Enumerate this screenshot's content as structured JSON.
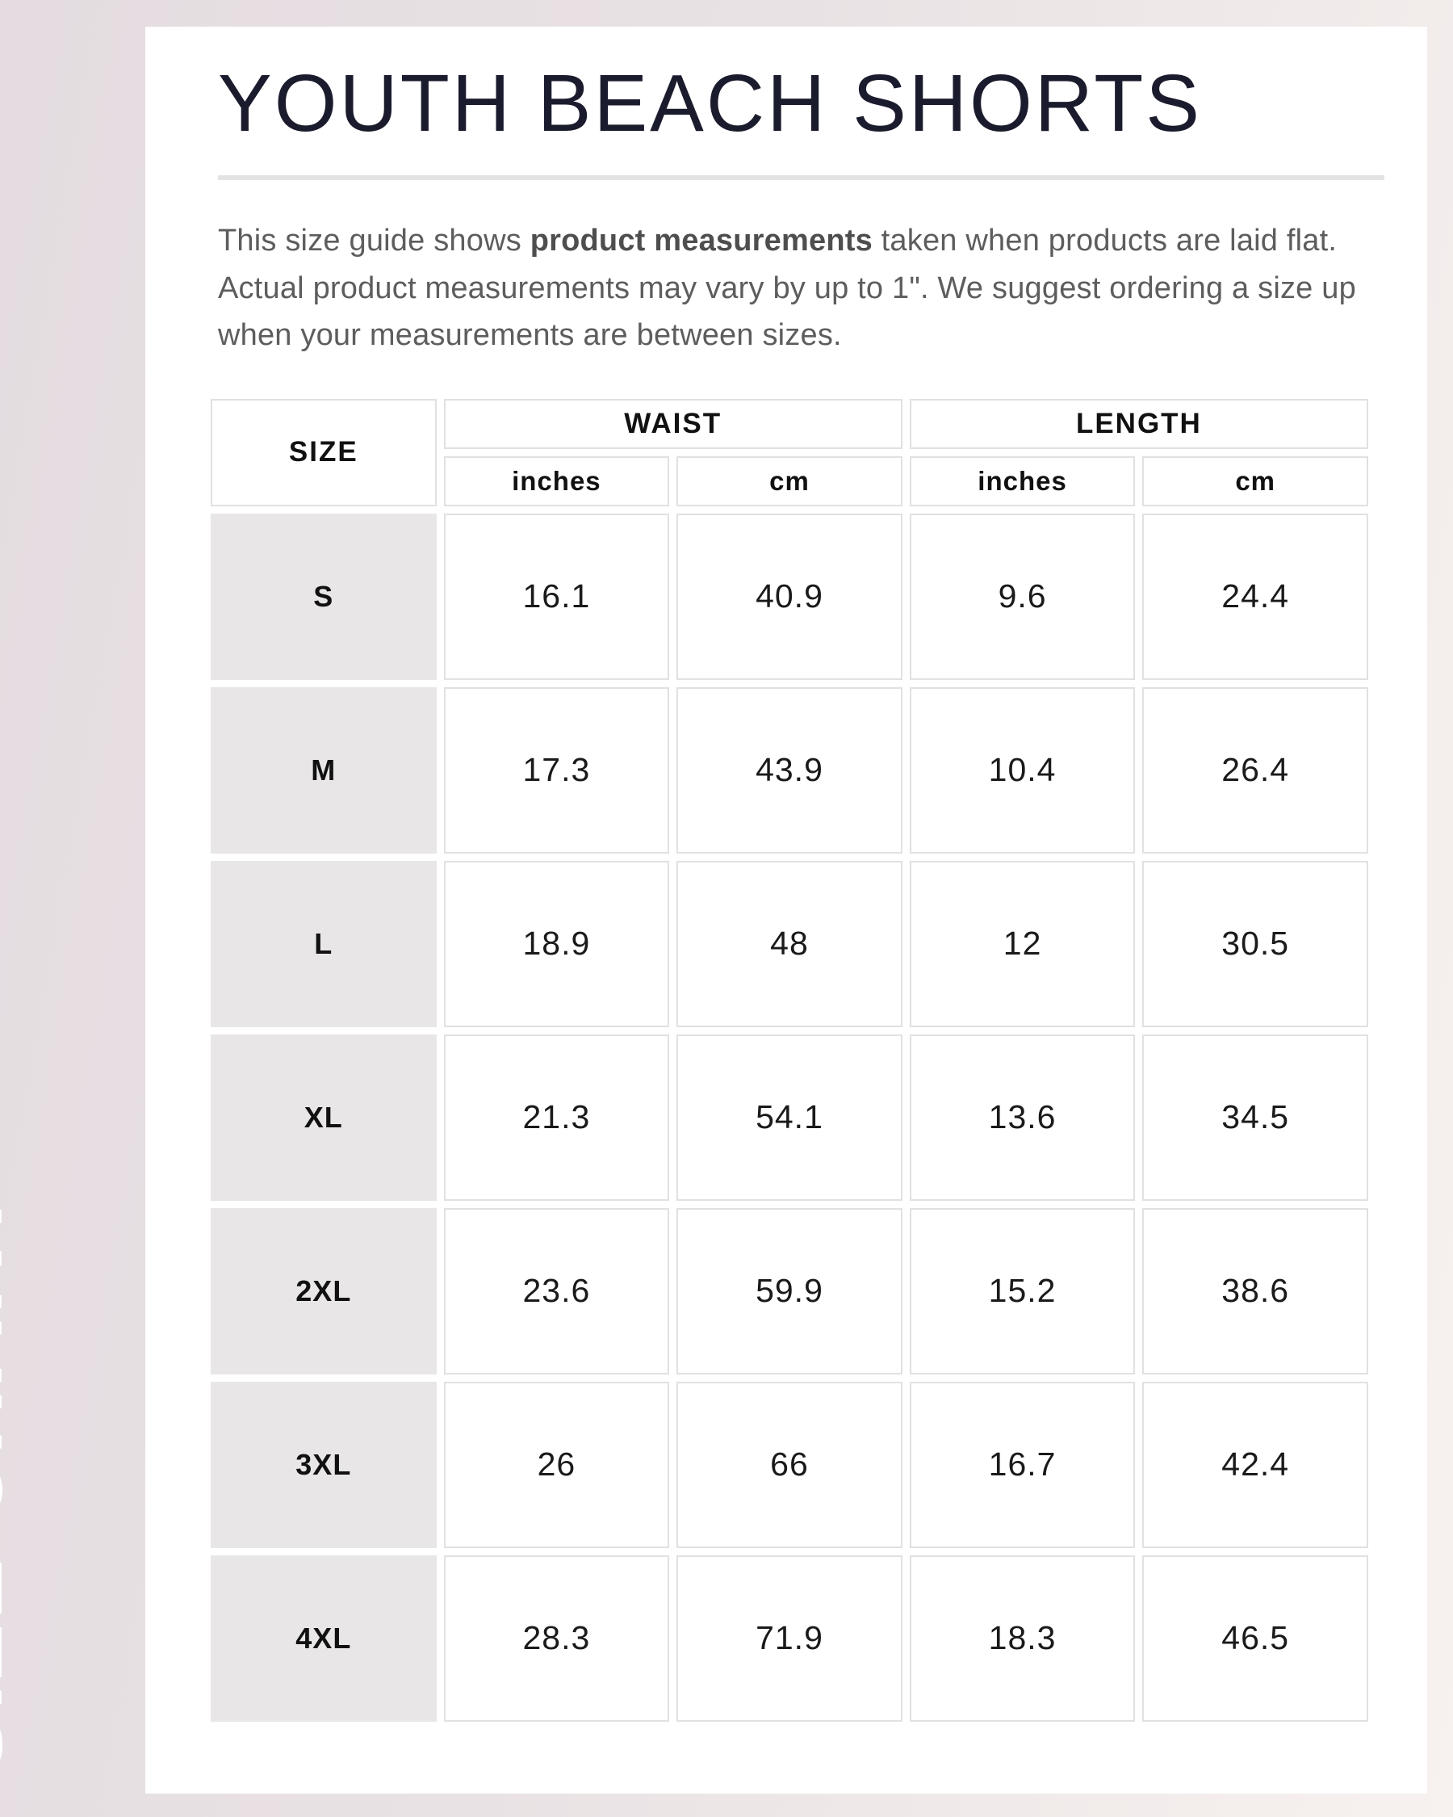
{
  "page": {
    "side_label": "SIZE CHART",
    "title": "YOUTH BEACH SHORTS",
    "description": {
      "part1": "This size guide shows ",
      "bold": "product measurements",
      "part2": " taken when products are laid flat. Actual product measurements may vary by up to 1\". We suggest ordering a size up when your measurements are between sizes."
    }
  },
  "table": {
    "size_header": "SIZE",
    "groups": {
      "waist": "WAIST",
      "length": "LENGTH"
    },
    "units": {
      "waist_in": "inches",
      "waist_cm": "cm",
      "length_in": "inches",
      "length_cm": "cm"
    },
    "rows": [
      {
        "size": "S",
        "waist_in": "16.1",
        "waist_cm": "40.9",
        "length_in": "9.6",
        "length_cm": "24.4"
      },
      {
        "size": "M",
        "waist_in": "17.3",
        "waist_cm": "43.9",
        "length_in": "10.4",
        "length_cm": "26.4"
      },
      {
        "size": "L",
        "waist_in": "18.9",
        "waist_cm": "48",
        "length_in": "12",
        "length_cm": "30.5"
      },
      {
        "size": "XL",
        "waist_in": "21.3",
        "waist_cm": "54.1",
        "length_in": "13.6",
        "length_cm": "34.5"
      },
      {
        "size": "2XL",
        "waist_in": "23.6",
        "waist_cm": "59.9",
        "length_in": "15.2",
        "length_cm": "38.6"
      },
      {
        "size": "3XL",
        "waist_in": "26",
        "waist_cm": "66",
        "length_in": "16.7",
        "length_cm": "42.4"
      },
      {
        "size": "4XL",
        "waist_in": "28.3",
        "waist_cm": "71.9",
        "length_in": "18.3",
        "length_cm": "46.5"
      }
    ]
  },
  "colors": {
    "card_background": "#ffffff",
    "page_gradient_left": "#e4dce0",
    "page_gradient_right": "#f7f1ef",
    "title_text": "#1b1b2e",
    "body_text": "#5d5d5d",
    "table_gray_cell": "#e8e6e6",
    "table_border": "#e2e0e0",
    "side_label_text": "#ffffff"
  }
}
